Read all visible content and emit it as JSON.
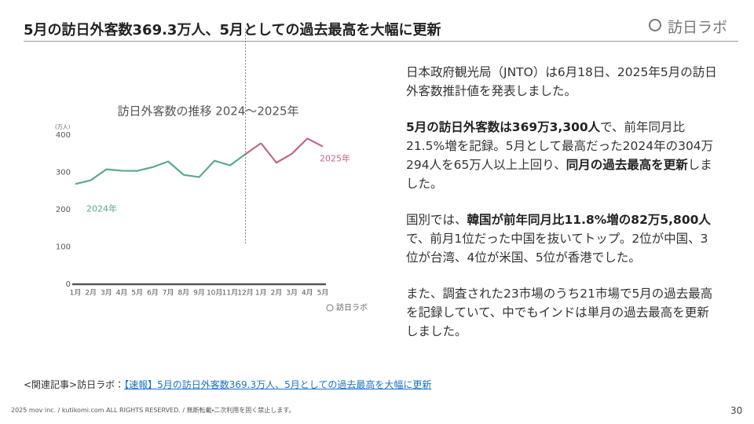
{
  "header": {
    "title": "5月の訪日外客数369.3万人、5月としての過去最高を大幅に更新",
    "logo": "訪日ラボ"
  },
  "body": {
    "paragraphs": [
      {
        "runs": [
          {
            "text": "日本政府観光局（JNTO）は6月18日、2025年5月の訪日外客数推計値を発表しました。",
            "bold": false
          }
        ]
      },
      {
        "runs": [
          {
            "text": "5月の訪日外客数は369万3,300人",
            "bold": true
          },
          {
            "text": "で、前年同月比21.5%増を記録。5月として最高だった2024年の304万294人を65万人以上上回り、",
            "bold": false
          },
          {
            "text": "同月の過去最高を更新",
            "bold": true
          },
          {
            "text": "しました。",
            "bold": false
          }
        ]
      },
      {
        "runs": [
          {
            "text": "国別では、",
            "bold": false
          },
          {
            "text": "韓国が前年同月比11.8%増の82万5,800人",
            "bold": true
          },
          {
            "text": "で、前月1位だった中国を抜いてトップ。2位が中国、3位が台湾、4位が米国、5位が香港でした。",
            "bold": false
          }
        ]
      },
      {
        "runs": [
          {
            "text": "また、調査された23市場のうち21市場で5月の過去最高を記録していて、中でもインドは単月の過去最高を更新しました。",
            "bold": false
          }
        ]
      }
    ]
  },
  "chart_data": {
    "type": "line",
    "title": "訪日外客数の推移 2024〜2025年",
    "y_unit": "(万人)",
    "source_logo": "訪日ラボ",
    "categories": [
      "1月",
      "2月",
      "3月",
      "4月",
      "5月",
      "6月",
      "7月",
      "8月",
      "9月",
      "10月",
      "11月",
      "12月",
      "1月",
      "2月",
      "3月",
      "4月",
      "5月"
    ],
    "series": [
      {
        "name": "2024年",
        "color": "#5aa88e",
        "values": [
          268.8,
          278.8,
          308.2,
          304.3,
          304.0,
          314.0,
          329.2,
          293.3,
          287.2,
          331.2,
          318.7,
          348.9,
          null,
          null,
          null,
          null,
          null
        ]
      },
      {
        "name": "2025年",
        "color": "#c0668a",
        "values": [
          null,
          null,
          null,
          null,
          null,
          null,
          null,
          null,
          null,
          null,
          null,
          null,
          378.2,
          325.8,
          349.8,
          390.8,
          369.3
        ]
      }
    ],
    "ylim": [
      0,
      400
    ],
    "yticks": [
      0,
      100,
      200,
      300,
      400
    ],
    "grid": false
  },
  "footer": {
    "related_prefix": "<関連記事>訪日ラボ：",
    "related_link": "【速報】5月の訪日外客数369.3万人、5月としての過去最高を大幅に更新",
    "copyright": "2025 mov inc. / kutikomi.com ALL RIGHTS RESERVED. / 無断転載・二次利用を固く禁止します。",
    "page": "30"
  }
}
